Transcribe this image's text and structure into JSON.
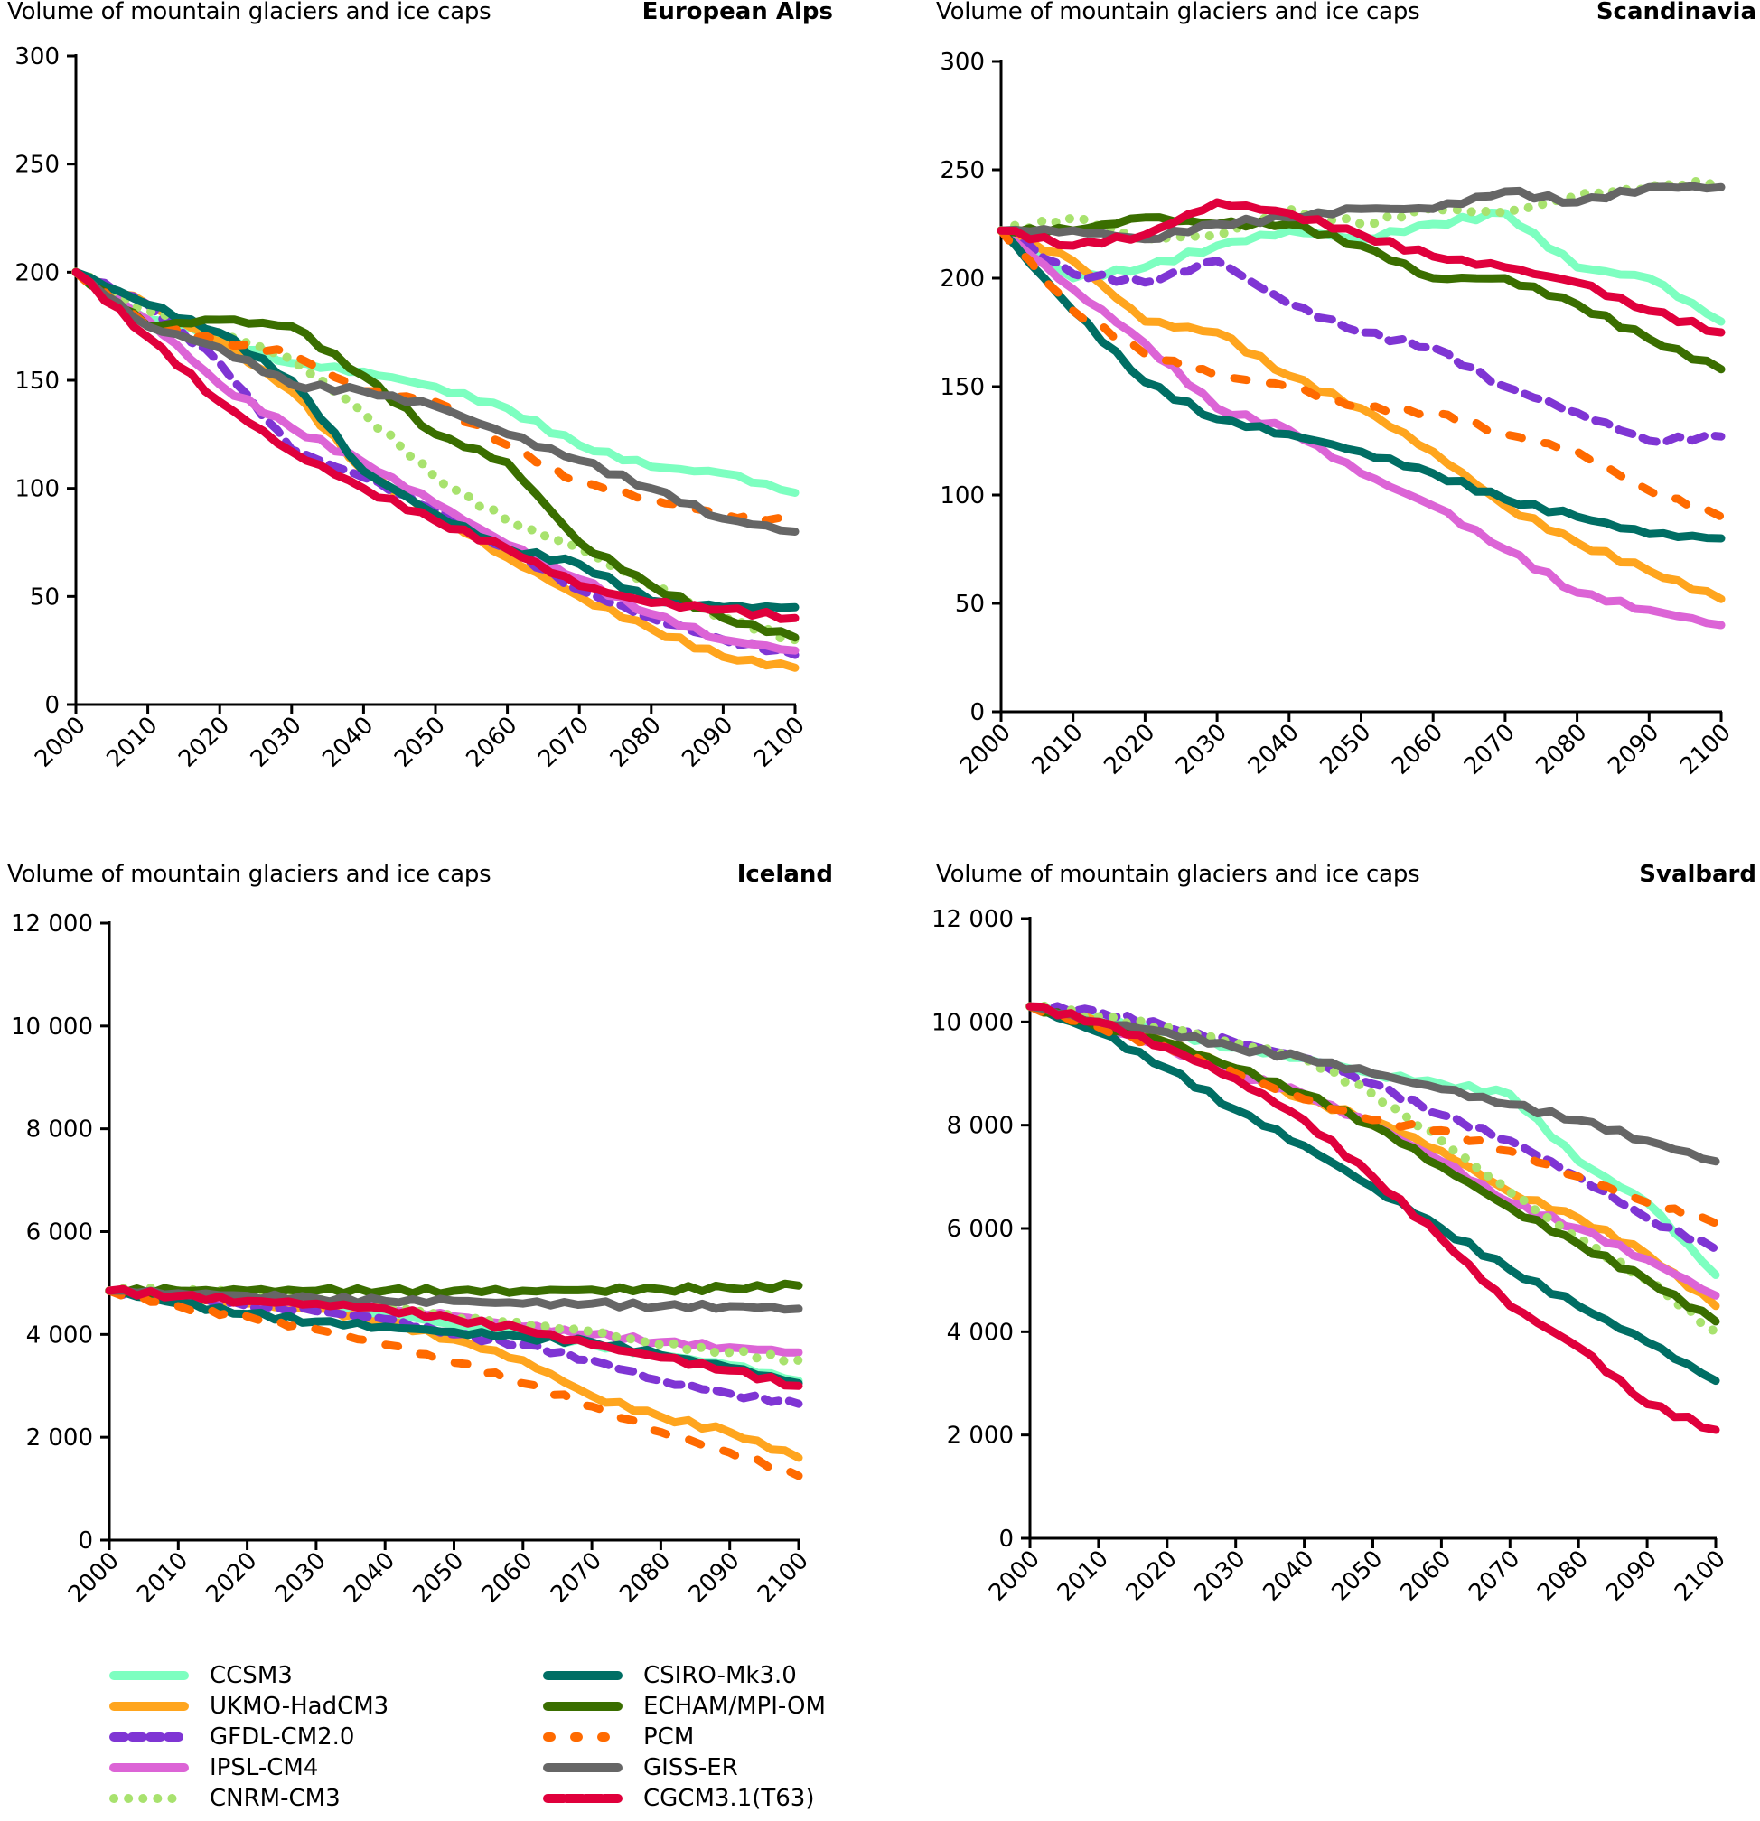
{
  "figure": {
    "legend": [
      {
        "name": "CCSM3",
        "color": "#7dffc0",
        "style": "solid"
      },
      {
        "name": "UKMO-HadCM3",
        "color": "#ffa51e",
        "style": "solid"
      },
      {
        "name": "GFDL-CM2.0",
        "color": "#7f35d4",
        "style": "dash"
      },
      {
        "name": "IPSL-CM4",
        "color": "#dc64d6",
        "style": "solid"
      },
      {
        "name": "CNRM-CM3",
        "color": "#a8e26e",
        "style": "dot"
      },
      {
        "name": "CSIRO-Mk3.0",
        "color": "#006e64",
        "style": "solid"
      },
      {
        "name": "ECHAM/MPI-OM",
        "color": "#3a6e00",
        "style": "solid"
      },
      {
        "name": "PCM",
        "color": "#ff6a00",
        "style": "dash-wide"
      },
      {
        "name": "GISS-ER",
        "color": "#666666",
        "style": "solid"
      },
      {
        "name": "CGCM3.1(T63)",
        "color": "#e0003c",
        "style": "solid-dashed"
      }
    ]
  },
  "chart_data": [
    {
      "type": "line",
      "title": "Volume of mountain glaciers and ice caps",
      "region": "European Alps",
      "xlabel": "",
      "ylabel": "",
      "x": [
        2000,
        2010,
        2020,
        2030,
        2040,
        2050,
        2060,
        2070,
        2080,
        2090,
        2100
      ],
      "xticks": [
        "2000",
        "2010",
        "2020",
        "2030",
        "2040",
        "2050",
        "2060",
        "2070",
        "2080",
        "2090",
        "2100"
      ],
      "yticks": [
        "0",
        "50",
        "100",
        "150",
        "200",
        "250",
        "300"
      ],
      "ylim": [
        0,
        300
      ],
      "grid": false,
      "legend": "bottom",
      "series": [
        {
          "name": "CCSM3",
          "values": [
            200,
            178,
            170,
            158,
            154,
            147,
            137,
            120,
            110,
            107,
            98
          ]
        },
        {
          "name": "UKMO-HadCM3",
          "values": [
            200,
            185,
            168,
            145,
            108,
            88,
            68,
            50,
            35,
            22,
            17
          ]
        },
        {
          "name": "GFDL-CM2.0",
          "values": [
            200,
            185,
            158,
            118,
            105,
            90,
            72,
            53,
            40,
            30,
            23
          ]
        },
        {
          "name": "IPSL-CM4",
          "values": [
            200,
            178,
            148,
            128,
            112,
            93,
            74,
            58,
            42,
            30,
            25
          ]
        },
        {
          "name": "CNRM-CM3",
          "values": [
            200,
            182,
            172,
            160,
            135,
            105,
            85,
            72,
            55,
            40,
            30
          ]
        },
        {
          "name": "CSIRO-Mk3.0",
          "values": [
            200,
            185,
            172,
            150,
            108,
            88,
            72,
            65,
            48,
            45,
            45
          ]
        },
        {
          "name": "ECHAM/MPI-OM",
          "values": [
            200,
            175,
            178,
            175,
            152,
            125,
            112,
            75,
            55,
            40,
            31
          ]
        },
        {
          "name": "PCM",
          "values": [
            200,
            175,
            168,
            162,
            145,
            140,
            120,
            103,
            95,
            88,
            85
          ]
        },
        {
          "name": "GISS-ER",
          "values": [
            200,
            175,
            165,
            148,
            145,
            138,
            125,
            113,
            100,
            86,
            80
          ]
        },
        {
          "name": "CGCM3.1(T63)",
          "values": [
            200,
            170,
            140,
            117,
            100,
            85,
            72,
            55,
            47,
            44,
            40
          ]
        }
      ]
    },
    {
      "type": "line",
      "title": "Volume of mountain glaciers and ice caps",
      "region": "Scandinavia",
      "xlabel": "",
      "ylabel": "",
      "x": [
        2000,
        2010,
        2020,
        2030,
        2040,
        2050,
        2060,
        2070,
        2080,
        2090,
        2100
      ],
      "xticks": [
        "2000",
        "2010",
        "2020",
        "2030",
        "2040",
        "2050",
        "2060",
        "2070",
        "2080",
        "2090",
        "2100"
      ],
      "yticks": [
        "0",
        "50",
        "100",
        "150",
        "200",
        "250",
        "300"
      ],
      "ylim": [
        0,
        300
      ],
      "grid": false,
      "legend": "bottom",
      "series": [
        {
          "name": "CCSM3",
          "values": [
            222,
            200,
            205,
            215,
            222,
            218,
            225,
            230,
            205,
            200,
            180
          ]
        },
        {
          "name": "UKMO-HadCM3",
          "values": [
            222,
            208,
            180,
            175,
            155,
            140,
            120,
            95,
            78,
            65,
            52
          ]
        },
        {
          "name": "GFDL-CM2.0",
          "values": [
            222,
            202,
            198,
            208,
            188,
            175,
            168,
            150,
            138,
            125,
            127
          ]
        },
        {
          "name": "IPSL-CM4",
          "values": [
            222,
            195,
            170,
            140,
            130,
            110,
            95,
            75,
            55,
            47,
            40
          ]
        },
        {
          "name": "CNRM-CM3",
          "values": [
            222,
            228,
            218,
            220,
            232,
            225,
            232,
            230,
            238,
            242,
            245
          ]
        },
        {
          "name": "CSIRO-Mk3.0",
          "values": [
            222,
            185,
            152,
            135,
            128,
            120,
            110,
            98,
            90,
            82,
            80
          ]
        },
        {
          "name": "ECHAM/MPI-OM",
          "values": [
            222,
            222,
            228,
            225,
            225,
            215,
            200,
            200,
            188,
            172,
            158
          ]
        },
        {
          "name": "PCM",
          "values": [
            222,
            185,
            165,
            155,
            150,
            140,
            138,
            128,
            120,
            102,
            90
          ]
        },
        {
          "name": "GISS-ER",
          "values": [
            222,
            222,
            218,
            225,
            228,
            232,
            232,
            240,
            235,
            242,
            242
          ]
        },
        {
          "name": "CGCM3.1(T63)",
          "values": [
            222,
            215,
            220,
            235,
            230,
            220,
            210,
            205,
            198,
            185,
            175
          ]
        }
      ]
    },
    {
      "type": "line",
      "title": "Volume of mountain glaciers and ice caps",
      "region": "Iceland",
      "xlabel": "",
      "ylabel": "",
      "x": [
        2000,
        2010,
        2020,
        2030,
        2040,
        2050,
        2060,
        2070,
        2080,
        2090,
        2100
      ],
      "xticks": [
        "2000",
        "2010",
        "2020",
        "2030",
        "2040",
        "2050",
        "2060",
        "2070",
        "2080",
        "2090",
        "2100"
      ],
      "yticks": [
        "0",
        "2 000",
        "4 000",
        "6 000",
        "8 000",
        "10 000",
        "12 000"
      ],
      "ylim": [
        0,
        12000
      ],
      "grid": false,
      "legend": "bottom",
      "series": [
        {
          "name": "CCSM3",
          "values": [
            4850,
            4750,
            4650,
            4550,
            4400,
            4200,
            4000,
            3800,
            3600,
            3400,
            3100
          ]
        },
        {
          "name": "UKMO-HadCM3",
          "values": [
            4850,
            4700,
            4600,
            4500,
            4250,
            3900,
            3500,
            2800,
            2400,
            2100,
            1600
          ]
        },
        {
          "name": "GFDL-CM2.0",
          "values": [
            4850,
            4700,
            4550,
            4450,
            4300,
            4000,
            3800,
            3500,
            3100,
            2850,
            2650
          ]
        },
        {
          "name": "IPSL-CM4",
          "values": [
            4850,
            4750,
            4700,
            4650,
            4500,
            4350,
            4150,
            4000,
            3850,
            3750,
            3650
          ]
        },
        {
          "name": "CNRM-CM3",
          "values": [
            4850,
            4850,
            4800,
            4700,
            4550,
            4350,
            4200,
            4050,
            3800,
            3650,
            3500
          ]
        },
        {
          "name": "CSIRO-Mk3.0",
          "values": [
            4850,
            4600,
            4400,
            4250,
            4150,
            4050,
            3950,
            3850,
            3600,
            3350,
            3050
          ]
        },
        {
          "name": "ECHAM/MPI-OM",
          "values": [
            4850,
            4850,
            4850,
            4850,
            4850,
            4850,
            4850,
            4870,
            4880,
            4900,
            4950
          ]
        },
        {
          "name": "PCM",
          "values": [
            4850,
            4550,
            4350,
            4100,
            3800,
            3450,
            3050,
            2600,
            2100,
            1700,
            1250
          ]
        },
        {
          "name": "GISS-ER",
          "values": [
            4850,
            4800,
            4750,
            4700,
            4650,
            4650,
            4600,
            4600,
            4550,
            4550,
            4500
          ]
        },
        {
          "name": "CGCM3.1(T63)",
          "values": [
            4850,
            4750,
            4650,
            4600,
            4500,
            4300,
            4100,
            3800,
            3550,
            3300,
            3000
          ]
        }
      ]
    },
    {
      "type": "line",
      "title": "Volume of mountain glaciers and ice caps",
      "region": "Svalbard",
      "xlabel": "",
      "ylabel": "",
      "x": [
        2000,
        2010,
        2020,
        2030,
        2040,
        2050,
        2060,
        2070,
        2080,
        2090,
        2100
      ],
      "xticks": [
        "2000",
        "2010",
        "2020",
        "2030",
        "2040",
        "2050",
        "2060",
        "2070",
        "2080",
        "2090",
        "2100"
      ],
      "yticks": [
        "0",
        "2 000",
        "4 000",
        "6 000",
        "8 000",
        "10 000",
        "12 000"
      ],
      "ylim": [
        0,
        12000
      ],
      "grid": false,
      "legend": "bottom",
      "series": [
        {
          "name": "CCSM3",
          "values": [
            10300,
            10100,
            9800,
            9500,
            9300,
            9000,
            8800,
            8600,
            7300,
            6500,
            5100
          ]
        },
        {
          "name": "UKMO-HadCM3",
          "values": [
            10300,
            10000,
            9600,
            9100,
            8500,
            8100,
            7500,
            6700,
            6200,
            5500,
            4500
          ]
        },
        {
          "name": "GFDL-CM2.0",
          "values": [
            10300,
            10200,
            9900,
            9600,
            9300,
            8800,
            8200,
            7700,
            7000,
            6200,
            5600
          ]
        },
        {
          "name": "IPSL-CM4",
          "values": [
            10300,
            9900,
            9500,
            9000,
            8600,
            8000,
            7300,
            6500,
            6000,
            5400,
            4700
          ]
        },
        {
          "name": "CNRM-CM3",
          "values": [
            10300,
            10100,
            9900,
            9600,
            9300,
            8600,
            7700,
            6700,
            5800,
            5000,
            4000
          ]
        },
        {
          "name": "CSIRO-Mk3.0",
          "values": [
            10300,
            9800,
            9100,
            8300,
            7600,
            6800,
            6000,
            5200,
            4500,
            3800,
            3050
          ]
        },
        {
          "name": "ECHAM/MPI-OM",
          "values": [
            10300,
            9900,
            9600,
            9100,
            8600,
            8000,
            7200,
            6400,
            5700,
            5000,
            4200
          ]
        },
        {
          "name": "PCM",
          "values": [
            10300,
            9900,
            9500,
            9000,
            8500,
            8100,
            7900,
            7500,
            7000,
            6500,
            6100
          ]
        },
        {
          "name": "GISS-ER",
          "values": [
            10300,
            10000,
            9800,
            9500,
            9300,
            9000,
            8700,
            8400,
            8100,
            7700,
            7300
          ]
        },
        {
          "name": "CGCM3.1(T63)",
          "values": [
            10300,
            10000,
            9500,
            8900,
            8100,
            7000,
            5800,
            4500,
            3700,
            2600,
            2100
          ]
        }
      ]
    }
  ]
}
